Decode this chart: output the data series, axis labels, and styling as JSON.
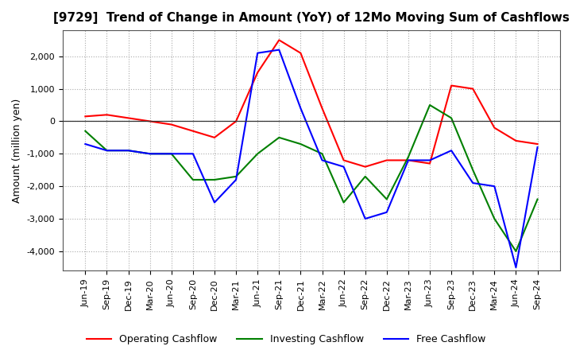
{
  "title": "[9729]  Trend of Change in Amount (YoY) of 12Mo Moving Sum of Cashflows",
  "ylabel": "Amount (million yen)",
  "x_labels": [
    "Jun-19",
    "Sep-19",
    "Dec-19",
    "Mar-20",
    "Jun-20",
    "Sep-20",
    "Dec-20",
    "Mar-21",
    "Jun-21",
    "Sep-21",
    "Dec-21",
    "Mar-22",
    "Jun-22",
    "Sep-22",
    "Dec-22",
    "Mar-23",
    "Jun-23",
    "Sep-23",
    "Dec-23",
    "Mar-24",
    "Jun-24",
    "Sep-24"
  ],
  "operating": [
    150,
    200,
    100,
    0,
    -100,
    -300,
    -500,
    0,
    1500,
    2500,
    2100,
    400,
    -1200,
    -1400,
    -1200,
    -1200,
    -1300,
    1100,
    1000,
    -200,
    -600,
    -700
  ],
  "investing": [
    -300,
    -900,
    -900,
    -1000,
    -1000,
    -1800,
    -1800,
    -1700,
    -1000,
    -500,
    -700,
    -1000,
    -2500,
    -1700,
    -2400,
    -1100,
    500,
    100,
    -1500,
    -3000,
    -4000,
    -2400
  ],
  "free": [
    -700,
    -900,
    -900,
    -1000,
    -1000,
    -1000,
    -2500,
    -1800,
    2100,
    2200,
    400,
    -1200,
    -1400,
    -3000,
    -2800,
    -1200,
    -1200,
    -900,
    -1900,
    -2000,
    -4500,
    -800
  ],
  "ylim": [
    -4600,
    2800
  ],
  "yticks": [
    -4000,
    -3000,
    -2000,
    -1000,
    0,
    1000,
    2000
  ],
  "operating_color": "#ff0000",
  "investing_color": "#008000",
  "free_color": "#0000ff",
  "background_color": "#ffffff",
  "grid_color": "#aaaaaa",
  "title_fontsize": 11,
  "label_fontsize": 9,
  "tick_fontsize": 8,
  "legend_fontsize": 9
}
